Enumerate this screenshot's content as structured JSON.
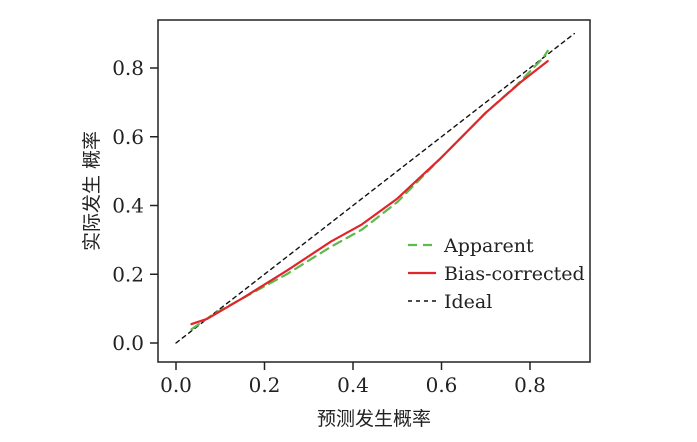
{
  "chart_data": {
    "type": "line",
    "title": "",
    "xlabel": "预测发生概率",
    "ylabel": "实际发生 概率",
    "xlim": [
      0.0,
      0.9
    ],
    "ylim": [
      0.0,
      0.9
    ],
    "x_ticks": [
      "0.0",
      "0.2",
      "0.4",
      "0.6",
      "0.8"
    ],
    "y_ticks": [
      "0.0",
      "0.2",
      "0.4",
      "0.6",
      "0.8"
    ],
    "grid": false,
    "legend": {
      "position": "bottom-right"
    },
    "series": [
      {
        "name": "Apparent",
        "color": "#5dbb4b",
        "dash": "dashed",
        "x": [
          0.035,
          0.08,
          0.15,
          0.25,
          0.35,
          0.42,
          0.5,
          0.6,
          0.7,
          0.77,
          0.83,
          0.84
        ],
        "y": [
          0.04,
          0.08,
          0.13,
          0.2,
          0.28,
          0.33,
          0.41,
          0.54,
          0.67,
          0.75,
          0.83,
          0.85
        ]
      },
      {
        "name": "Bias-corrected",
        "color": "#e0252b",
        "dash": "solid",
        "x": [
          0.035,
          0.07,
          0.15,
          0.25,
          0.35,
          0.42,
          0.5,
          0.6,
          0.7,
          0.78,
          0.84
        ],
        "y": [
          0.055,
          0.07,
          0.13,
          0.21,
          0.295,
          0.345,
          0.42,
          0.54,
          0.67,
          0.76,
          0.82
        ]
      },
      {
        "name": "Ideal",
        "color": "#111111",
        "dash": "dotted",
        "x": [
          0.0,
          0.9
        ],
        "y": [
          0.0,
          0.9
        ]
      }
    ]
  }
}
